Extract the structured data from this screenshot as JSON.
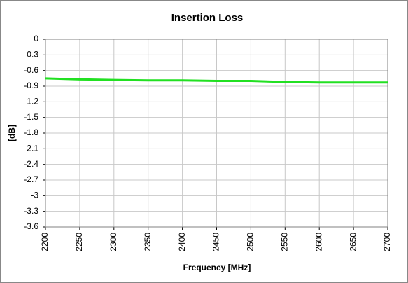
{
  "chart_data": {
    "type": "line",
    "title": "Insertion Loss",
    "x_label": "Frequency [MHz]",
    "y_label": "[dB]",
    "x": [
      2200,
      2250,
      2300,
      2350,
      2400,
      2450,
      2500,
      2550,
      2600,
      2650,
      2700
    ],
    "series": [
      {
        "name": "Insertion Loss",
        "color": "#22e022",
        "values": [
          -0.75,
          -0.77,
          -0.78,
          -0.79,
          -0.79,
          -0.8,
          -0.8,
          -0.82,
          -0.83,
          -0.83,
          -0.83
        ]
      }
    ],
    "xlim": [
      2200,
      2700
    ],
    "xticks": [
      2200,
      2250,
      2300,
      2350,
      2400,
      2450,
      2500,
      2550,
      2600,
      2650,
      2700
    ],
    "ylim": [
      -3.6,
      0
    ],
    "yticks": [
      0,
      -0.3,
      -0.6,
      -0.9,
      -1.2,
      -1.5,
      -1.8,
      -2.1,
      -2.4,
      -2.7,
      -3,
      -3.3,
      -3.6
    ],
    "grid": true
  }
}
